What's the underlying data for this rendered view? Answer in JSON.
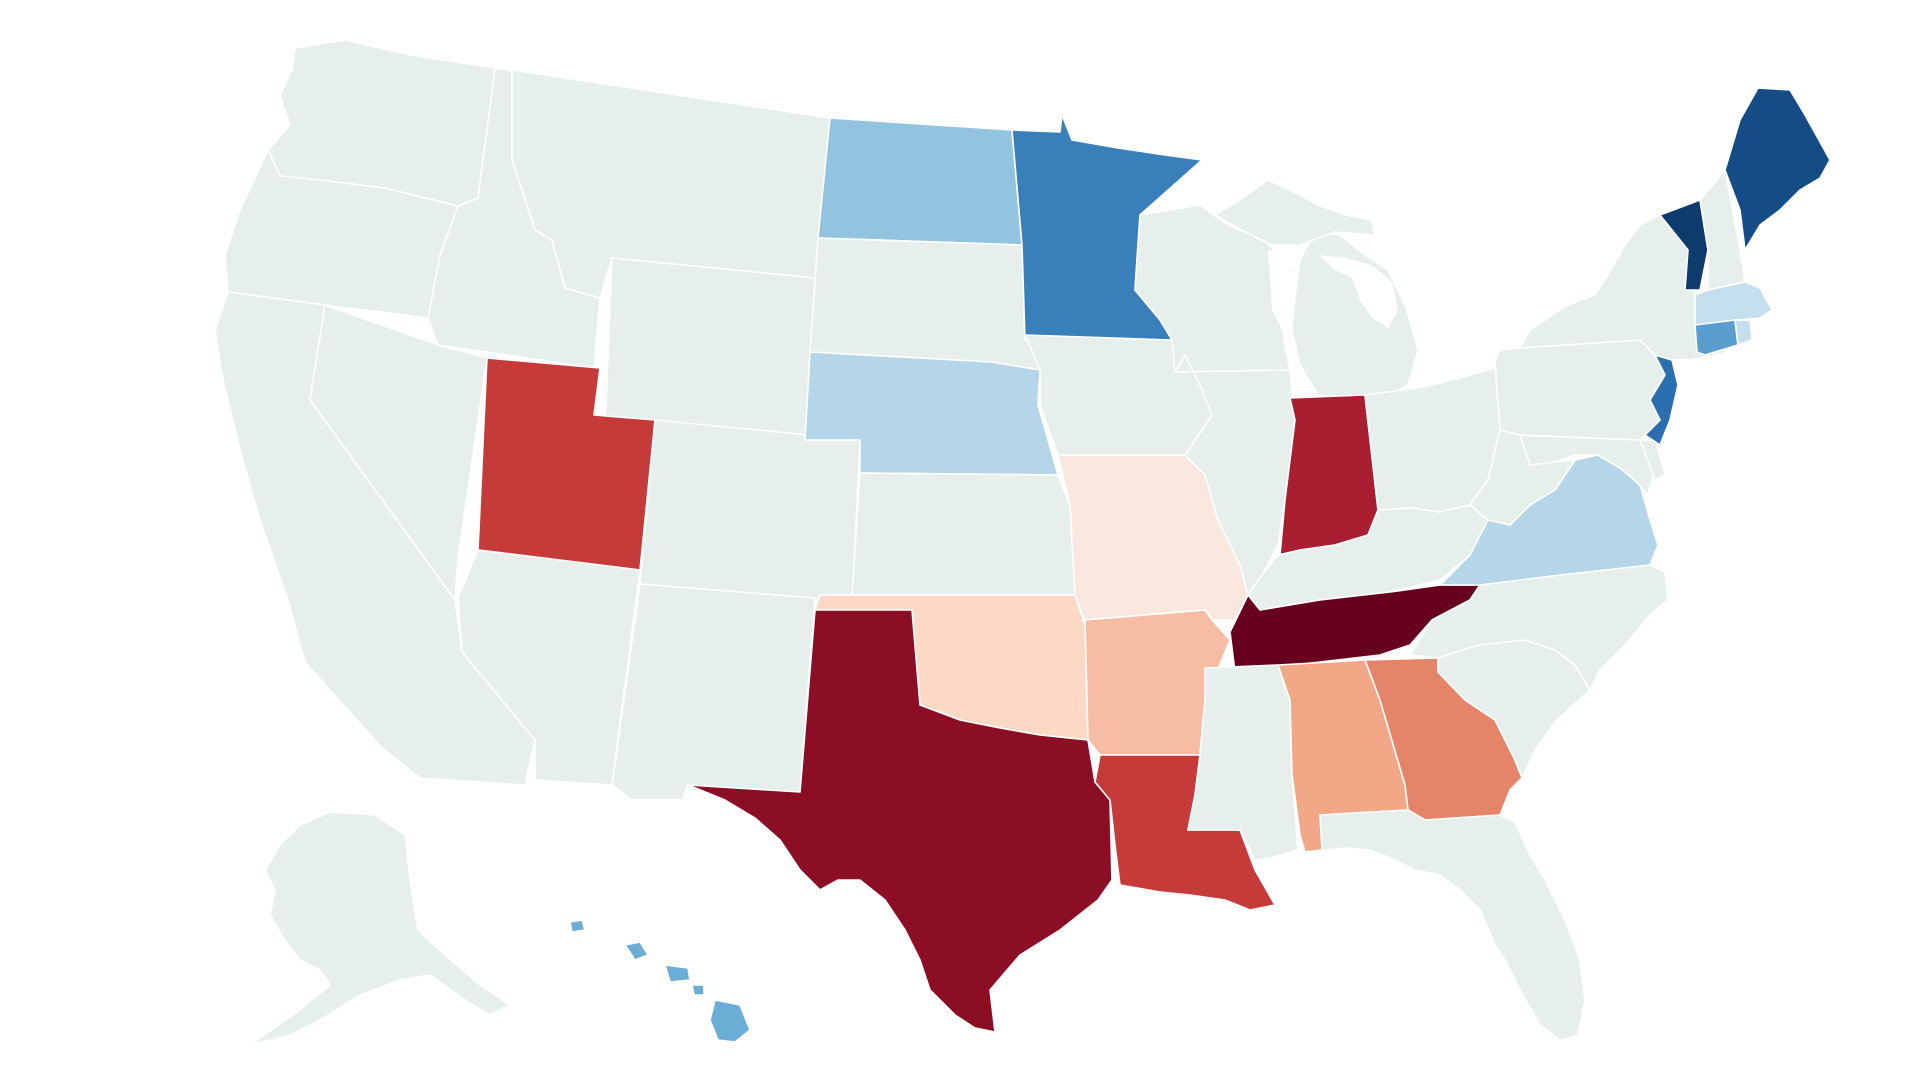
{
  "map": {
    "type": "choropleth",
    "region": "United States",
    "legend": null,
    "default_color": "#e6efec",
    "states": [
      {
        "id": "WA",
        "color": "#e6efec"
      },
      {
        "id": "OR",
        "color": "#e6efec"
      },
      {
        "id": "CA",
        "color": "#e6efec"
      },
      {
        "id": "ID",
        "color": "#e6efec"
      },
      {
        "id": "NV",
        "color": "#e6efec"
      },
      {
        "id": "MT",
        "color": "#e6efec"
      },
      {
        "id": "WY",
        "color": "#e6efec"
      },
      {
        "id": "UT",
        "color": "#c43b3a"
      },
      {
        "id": "AZ",
        "color": "#e6efec"
      },
      {
        "id": "CO",
        "color": "#e6efec"
      },
      {
        "id": "NM",
        "color": "#e6efec"
      },
      {
        "id": "ND",
        "color": "#92c4df"
      },
      {
        "id": "SD",
        "color": "#e6efec"
      },
      {
        "id": "NE",
        "color": "#b4d6e8"
      },
      {
        "id": "KS",
        "color": "#e6efec"
      },
      {
        "id": "OK",
        "color": "#fbd9c4"
      },
      {
        "id": "TX",
        "color": "#8b0e25"
      },
      {
        "id": "MN",
        "color": "#3980ba"
      },
      {
        "id": "IA",
        "color": "#e6efec"
      },
      {
        "id": "MO",
        "color": "#fae8df"
      },
      {
        "id": "AR",
        "color": "#f7bca4"
      },
      {
        "id": "LA",
        "color": "#c43b3a"
      },
      {
        "id": "WI",
        "color": "#e6efec"
      },
      {
        "id": "IL",
        "color": "#e6efec"
      },
      {
        "id": "MI",
        "color": "#e6efec"
      },
      {
        "id": "IN",
        "color": "#a91e31"
      },
      {
        "id": "OH",
        "color": "#e6efec"
      },
      {
        "id": "KY",
        "color": "#e6efec"
      },
      {
        "id": "TN",
        "color": "#67001f"
      },
      {
        "id": "MS",
        "color": "#e6efec"
      },
      {
        "id": "AL",
        "color": "#f2a786"
      },
      {
        "id": "GA",
        "color": "#e4856a"
      },
      {
        "id": "FL",
        "color": "#e6efec"
      },
      {
        "id": "SC",
        "color": "#e6efec"
      },
      {
        "id": "NC",
        "color": "#e6efec"
      },
      {
        "id": "VA",
        "color": "#b4d6e8"
      },
      {
        "id": "WV",
        "color": "#e6efec"
      },
      {
        "id": "MD",
        "color": "#e6efec"
      },
      {
        "id": "DE",
        "color": "#e6efec"
      },
      {
        "id": "PA",
        "color": "#e6efec"
      },
      {
        "id": "NJ",
        "color": "#2c6fb1"
      },
      {
        "id": "NY",
        "color": "#e6efec"
      },
      {
        "id": "CT",
        "color": "#5a9ecf"
      },
      {
        "id": "RI",
        "color": "#c6dfee"
      },
      {
        "id": "MA",
        "color": "#c6dfee"
      },
      {
        "id": "VT",
        "color": "#0d3b6e"
      },
      {
        "id": "NH",
        "color": "#e6efec"
      },
      {
        "id": "ME",
        "color": "#154c86"
      },
      {
        "id": "AK",
        "color": "#e6efec"
      },
      {
        "id": "HI",
        "color": "#6aaed6"
      }
    ]
  }
}
